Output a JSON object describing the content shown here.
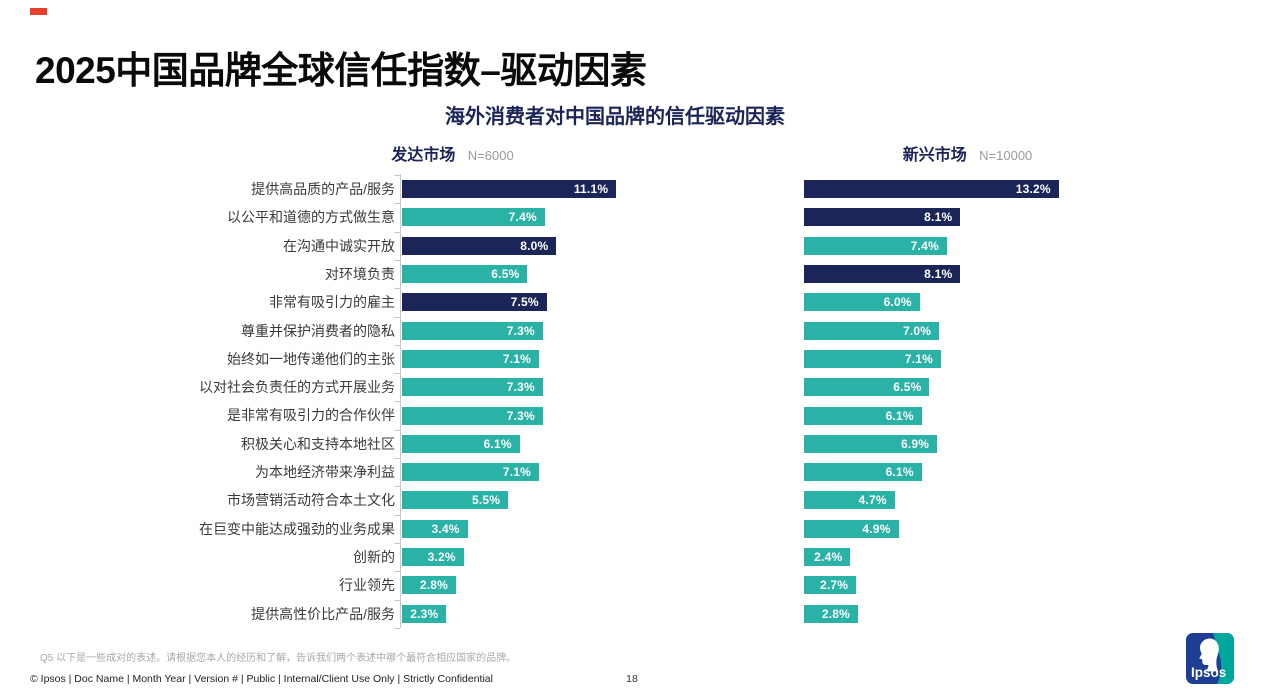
{
  "slide": {
    "title": "2025中国品牌全球信任指数–驱动因素",
    "subtitle": "海外消费者对中国品牌的信任驱动因素",
    "footnote": "Q5 以下是一些成对的表述。请根据您本人的经历和了解，告诉我们两个表述中哪个最符合相应国家的品牌。",
    "footer": "© Ipsos | Doc Name | Month Year | Version # | Public | Internal/Client Use Only | Strictly Confidential",
    "page_number": "18",
    "logo_text": "Ipsos",
    "accent_color": "#e8402d"
  },
  "chart_data": {
    "type": "bar",
    "orientation": "horizontal",
    "title": "海外消费者对中国品牌的信任驱动因素",
    "value_suffix": "%",
    "xlim": [
      0,
      20
    ],
    "grid": false,
    "legend_position": "none",
    "categories": [
      "提供高品质的产品/服务",
      "以公平和道德的方式做生意",
      "在沟通中诚实开放",
      "对环境负责",
      "非常有吸引力的雇主",
      "尊重并保护消费者的隐私",
      "始终如一地传递他们的主张",
      "以对社会负责任的方式开展业务",
      "是非常有吸引力的合作伙伴",
      "积极关心和支持本地社区",
      "为本地经济带来净利益",
      "市场营销活动符合本土文化",
      "在巨变中能达成强劲的业务成果",
      "创新的",
      "行业领先",
      "提供高性价比产品/服务"
    ],
    "series": [
      {
        "name": "发达市场",
        "sample_size": "N=6000",
        "values": [
          11.1,
          7.4,
          8.0,
          6.5,
          7.5,
          7.3,
          7.1,
          7.3,
          7.3,
          6.1,
          7.1,
          5.5,
          3.4,
          3.2,
          2.8,
          2.3
        ],
        "highlighted": [
          true,
          false,
          true,
          false,
          true,
          false,
          false,
          false,
          false,
          false,
          false,
          false,
          false,
          false,
          false,
          false
        ]
      },
      {
        "name": "新兴市场",
        "sample_size": "N=10000",
        "values": [
          13.2,
          8.1,
          7.4,
          8.1,
          6.0,
          7.0,
          7.1,
          6.5,
          6.1,
          6.9,
          6.1,
          4.7,
          4.9,
          2.4,
          2.7,
          2.8
        ],
        "highlighted": [
          true,
          true,
          false,
          true,
          false,
          false,
          false,
          false,
          false,
          false,
          false,
          false,
          false,
          false,
          false,
          false
        ]
      }
    ],
    "colors": {
      "highlight_bar": "#1b2557",
      "normal_bar": "#29b2a5"
    }
  }
}
